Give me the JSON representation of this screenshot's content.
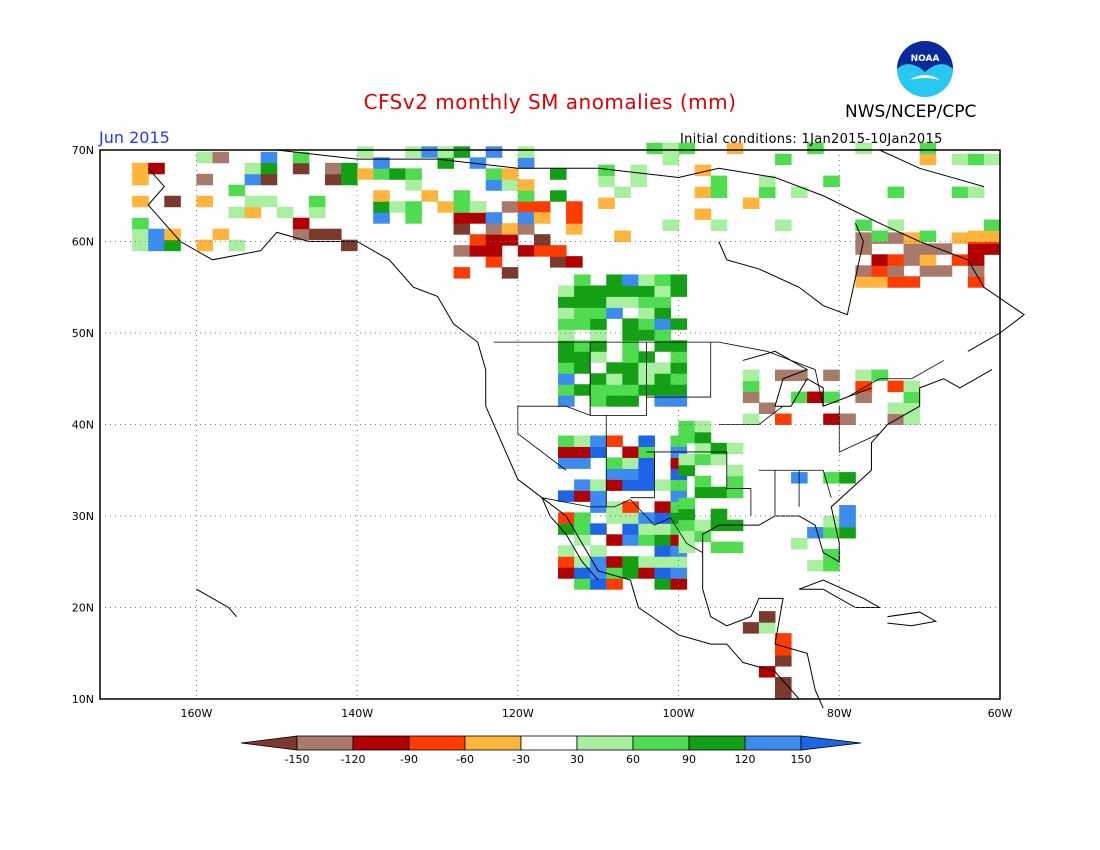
{
  "title": "CFSv2 monthly SM anomalies (mm)",
  "org": "NWS/NCEP/CPC",
  "logo_text": "NOAA",
  "month": "Jun 2015",
  "initial_conditions": "Initial conditions: 1Jan2015-10Jan2015",
  "map": {
    "lon_range": [
      -172,
      -60
    ],
    "lat_range": [
      10,
      70
    ],
    "lat_labels": [
      "10N",
      "20N",
      "30N",
      "40N",
      "50N",
      "60N",
      "70N"
    ],
    "lon_labels": [
      "160W",
      "140W",
      "120W",
      "100W",
      "80W",
      "60W"
    ],
    "grid": true
  },
  "legend": {
    "levels": [
      "-150",
      "-120",
      "-90",
      "-60",
      "-30",
      "30",
      "60",
      "90",
      "120",
      "150"
    ],
    "colors": [
      "#7a3b2e",
      "#a87a6b",
      "#b00000",
      "#ff3c00",
      "#ffb43c",
      "#ffffff",
      "#a8f0a0",
      "#50dc50",
      "#14a014",
      "#3c8cf0",
      "#1e64e6"
    ]
  }
}
